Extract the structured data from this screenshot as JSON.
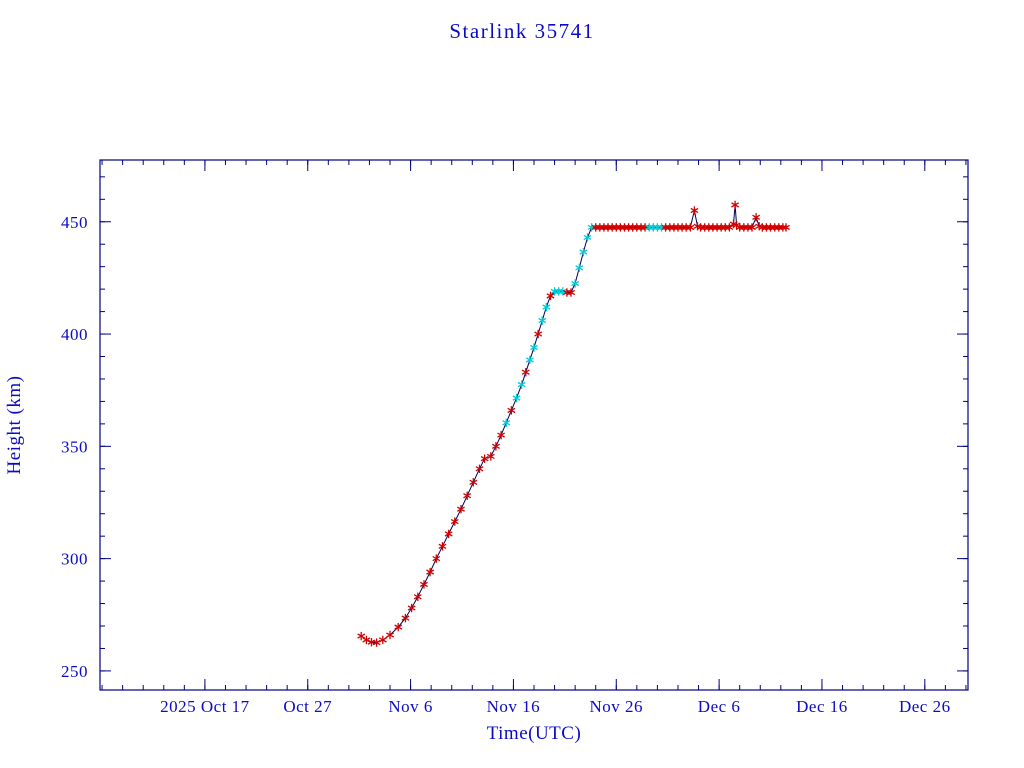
{
  "chart_data": {
    "type": "line",
    "title": "Starlink 35741",
    "xlabel": "Time(UTC)",
    "ylabel": "Height (km)",
    "legend": "none",
    "grid": false,
    "marker_style": "asterisk",
    "x_unit": "days since 2025-10-01 (Oct 1 = 0)",
    "xlim": [
      5.8,
      90.2
    ],
    "ylim": [
      241.5,
      477.5
    ],
    "x_minor_step": 2,
    "y_minor_step": 10,
    "x_ticks": [
      {
        "value": 16,
        "label": "2025 Oct 17"
      },
      {
        "value": 26,
        "label": "Oct 27"
      },
      {
        "value": 36,
        "label": "Nov 6"
      },
      {
        "value": 46,
        "label": "Nov 16"
      },
      {
        "value": 56,
        "label": "Nov 26"
      },
      {
        "value": 66,
        "label": "Dec 6"
      },
      {
        "value": 76,
        "label": "Dec 16"
      },
      {
        "value": 86,
        "label": "Dec 26"
      }
    ],
    "y_ticks": [
      {
        "value": 250,
        "label": "250"
      },
      {
        "value": 300,
        "label": "300"
      },
      {
        "value": 350,
        "label": "350"
      },
      {
        "value": 400,
        "label": "400"
      },
      {
        "value": 450,
        "label": "450"
      }
    ],
    "colors": {
      "frame": "#000080",
      "line": "#000055",
      "marker_red": "#d40000",
      "marker_cyan": "#00ccd8",
      "text": "#0b0bc4",
      "background": "#ffffff"
    },
    "point_format": "[days_since_2025-10-01, height_km, marker_color r=red c=cyan]",
    "series": [
      {
        "name": "orbit-height",
        "points": [
          [
            31.2,
            265.5,
            "r"
          ],
          [
            31.7,
            263.8,
            "r"
          ],
          [
            32.2,
            262.8,
            "r"
          ],
          [
            32.7,
            262.6,
            "r"
          ],
          [
            33.3,
            263.8,
            "r"
          ],
          [
            34.0,
            266.0,
            "r"
          ],
          [
            34.8,
            269.5,
            "r"
          ],
          [
            35.5,
            273.5,
            "r"
          ],
          [
            36.1,
            278.0,
            "r"
          ],
          [
            36.7,
            283.0,
            "r"
          ],
          [
            37.3,
            288.5,
            "r"
          ],
          [
            37.9,
            294.0,
            "r"
          ],
          [
            38.5,
            300.0,
            "r"
          ],
          [
            39.1,
            305.5,
            "r"
          ],
          [
            39.7,
            311.0,
            "r"
          ],
          [
            40.3,
            316.5,
            "r"
          ],
          [
            40.9,
            322.0,
            "r"
          ],
          [
            41.5,
            328.0,
            "r"
          ],
          [
            42.1,
            334.0,
            "r"
          ],
          [
            42.7,
            340.0,
            "r"
          ],
          [
            43.2,
            344.5,
            "r"
          ],
          [
            43.8,
            345.5,
            "r"
          ],
          [
            44.3,
            350.0,
            "r"
          ],
          [
            44.8,
            355.0,
            "r"
          ],
          [
            45.3,
            360.5,
            "c"
          ],
          [
            45.8,
            366.0,
            "r"
          ],
          [
            46.3,
            371.5,
            "c"
          ],
          [
            46.8,
            377.5,
            "c"
          ],
          [
            47.2,
            383.0,
            "r"
          ],
          [
            47.6,
            388.5,
            "c"
          ],
          [
            48.0,
            394.0,
            "c"
          ],
          [
            48.4,
            400.0,
            "r"
          ],
          [
            48.8,
            406.0,
            "c"
          ],
          [
            49.2,
            412.0,
            "c"
          ],
          [
            49.6,
            417.0,
            "r"
          ],
          [
            50.0,
            419.0,
            "c"
          ],
          [
            50.4,
            419.0,
            "c"
          ],
          [
            50.8,
            419.0,
            "c"
          ],
          [
            51.2,
            418.5,
            "r"
          ],
          [
            51.6,
            418.5,
            "r"
          ],
          [
            52.0,
            422.5,
            "c"
          ],
          [
            52.4,
            429.5,
            "c"
          ],
          [
            52.8,
            436.5,
            "c"
          ],
          [
            53.2,
            443.0,
            "c"
          ],
          [
            53.6,
            447.5,
            "c"
          ],
          [
            54.0,
            447.5,
            "r"
          ],
          [
            54.4,
            447.5,
            "r"
          ],
          [
            54.8,
            447.5,
            "r"
          ],
          [
            55.2,
            447.5,
            "r"
          ],
          [
            55.6,
            447.5,
            "r"
          ],
          [
            56.0,
            447.5,
            "r"
          ],
          [
            56.4,
            447.5,
            "r"
          ],
          [
            56.8,
            447.5,
            "r"
          ],
          [
            57.2,
            447.5,
            "r"
          ],
          [
            57.6,
            447.5,
            "r"
          ],
          [
            58.0,
            447.5,
            "r"
          ],
          [
            58.4,
            447.5,
            "r"
          ],
          [
            58.8,
            447.5,
            "r"
          ],
          [
            59.2,
            447.5,
            "c"
          ],
          [
            59.6,
            447.5,
            "c"
          ],
          [
            60.0,
            447.5,
            "c"
          ],
          [
            60.4,
            447.5,
            "c"
          ],
          [
            60.8,
            447.5,
            "r"
          ],
          [
            61.2,
            447.5,
            "r"
          ],
          [
            61.6,
            447.5,
            "r"
          ],
          [
            62.0,
            447.5,
            "r"
          ],
          [
            62.4,
            447.5,
            "r"
          ],
          [
            62.8,
            447.5,
            "r"
          ],
          [
            63.2,
            447.5,
            "r"
          ],
          [
            63.6,
            455.0,
            "r"
          ],
          [
            63.9,
            448.0,
            "r"
          ],
          [
            64.2,
            447.5,
            "r"
          ],
          [
            64.6,
            447.5,
            "r"
          ],
          [
            65.0,
            447.5,
            "r"
          ],
          [
            65.4,
            447.5,
            "r"
          ],
          [
            65.8,
            447.5,
            "r"
          ],
          [
            66.2,
            447.5,
            "r"
          ],
          [
            66.6,
            447.5,
            "r"
          ],
          [
            67.0,
            447.5,
            "r"
          ],
          [
            67.4,
            449.0,
            "r"
          ],
          [
            67.55,
            457.5,
            "r"
          ],
          [
            67.7,
            448.5,
            "r"
          ],
          [
            68.0,
            447.5,
            "r"
          ],
          [
            68.4,
            447.5,
            "r"
          ],
          [
            68.8,
            447.5,
            "r"
          ],
          [
            69.2,
            447.5,
            "r"
          ],
          [
            69.6,
            452.0,
            "r"
          ],
          [
            69.9,
            448.0,
            "r"
          ],
          [
            70.2,
            447.5,
            "r"
          ],
          [
            70.6,
            447.5,
            "r"
          ],
          [
            71.0,
            447.5,
            "r"
          ],
          [
            71.4,
            447.5,
            "r"
          ],
          [
            71.8,
            447.5,
            "r"
          ],
          [
            72.2,
            447.5,
            "r"
          ],
          [
            72.5,
            447.5,
            "r"
          ]
        ]
      }
    ]
  }
}
